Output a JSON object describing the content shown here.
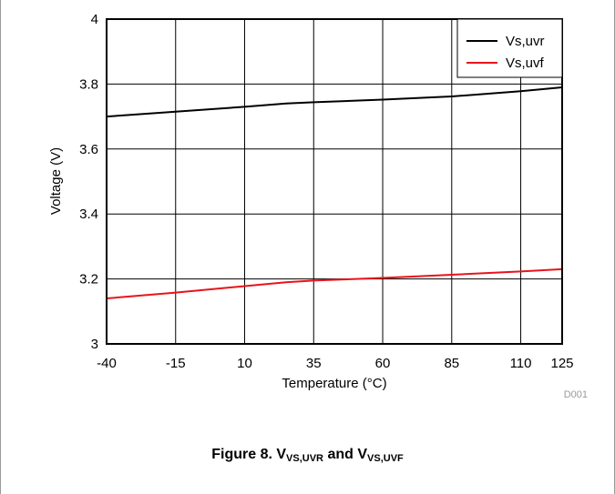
{
  "chart_data": {
    "type": "line",
    "title": "",
    "xlabel": "Temperature (°C)",
    "ylabel": "Voltage (V)",
    "xlim": [
      -40,
      125
    ],
    "ylim": [
      3,
      4
    ],
    "xticks": [
      "-40",
      "-15",
      "10",
      "35",
      "60",
      "85",
      "110",
      "125"
    ],
    "yticks": [
      "3",
      "3.2",
      "3.4",
      "3.6",
      "3.8",
      "4"
    ],
    "grid": true,
    "legend_position": "top-right",
    "series": [
      {
        "name": "Vs,uvr",
        "color": "#000000",
        "x": [
          -40,
          -15,
          10,
          25,
          35,
          60,
          85,
          110,
          125
        ],
        "y": [
          3.7,
          3.715,
          3.73,
          3.74,
          3.744,
          3.752,
          3.762,
          3.778,
          3.79
        ]
      },
      {
        "name": "Vs,uvf",
        "color": "#e8141b",
        "x": [
          -40,
          -15,
          10,
          25,
          35,
          60,
          85,
          110,
          125
        ],
        "y": [
          3.14,
          3.158,
          3.178,
          3.19,
          3.195,
          3.203,
          3.213,
          3.223,
          3.23
        ]
      }
    ],
    "annotation": "D001"
  },
  "caption": {
    "prefix": "Figure 8. V",
    "sub1": "VS,UVR",
    "middle": " and V",
    "sub2": "VS,UVF"
  }
}
